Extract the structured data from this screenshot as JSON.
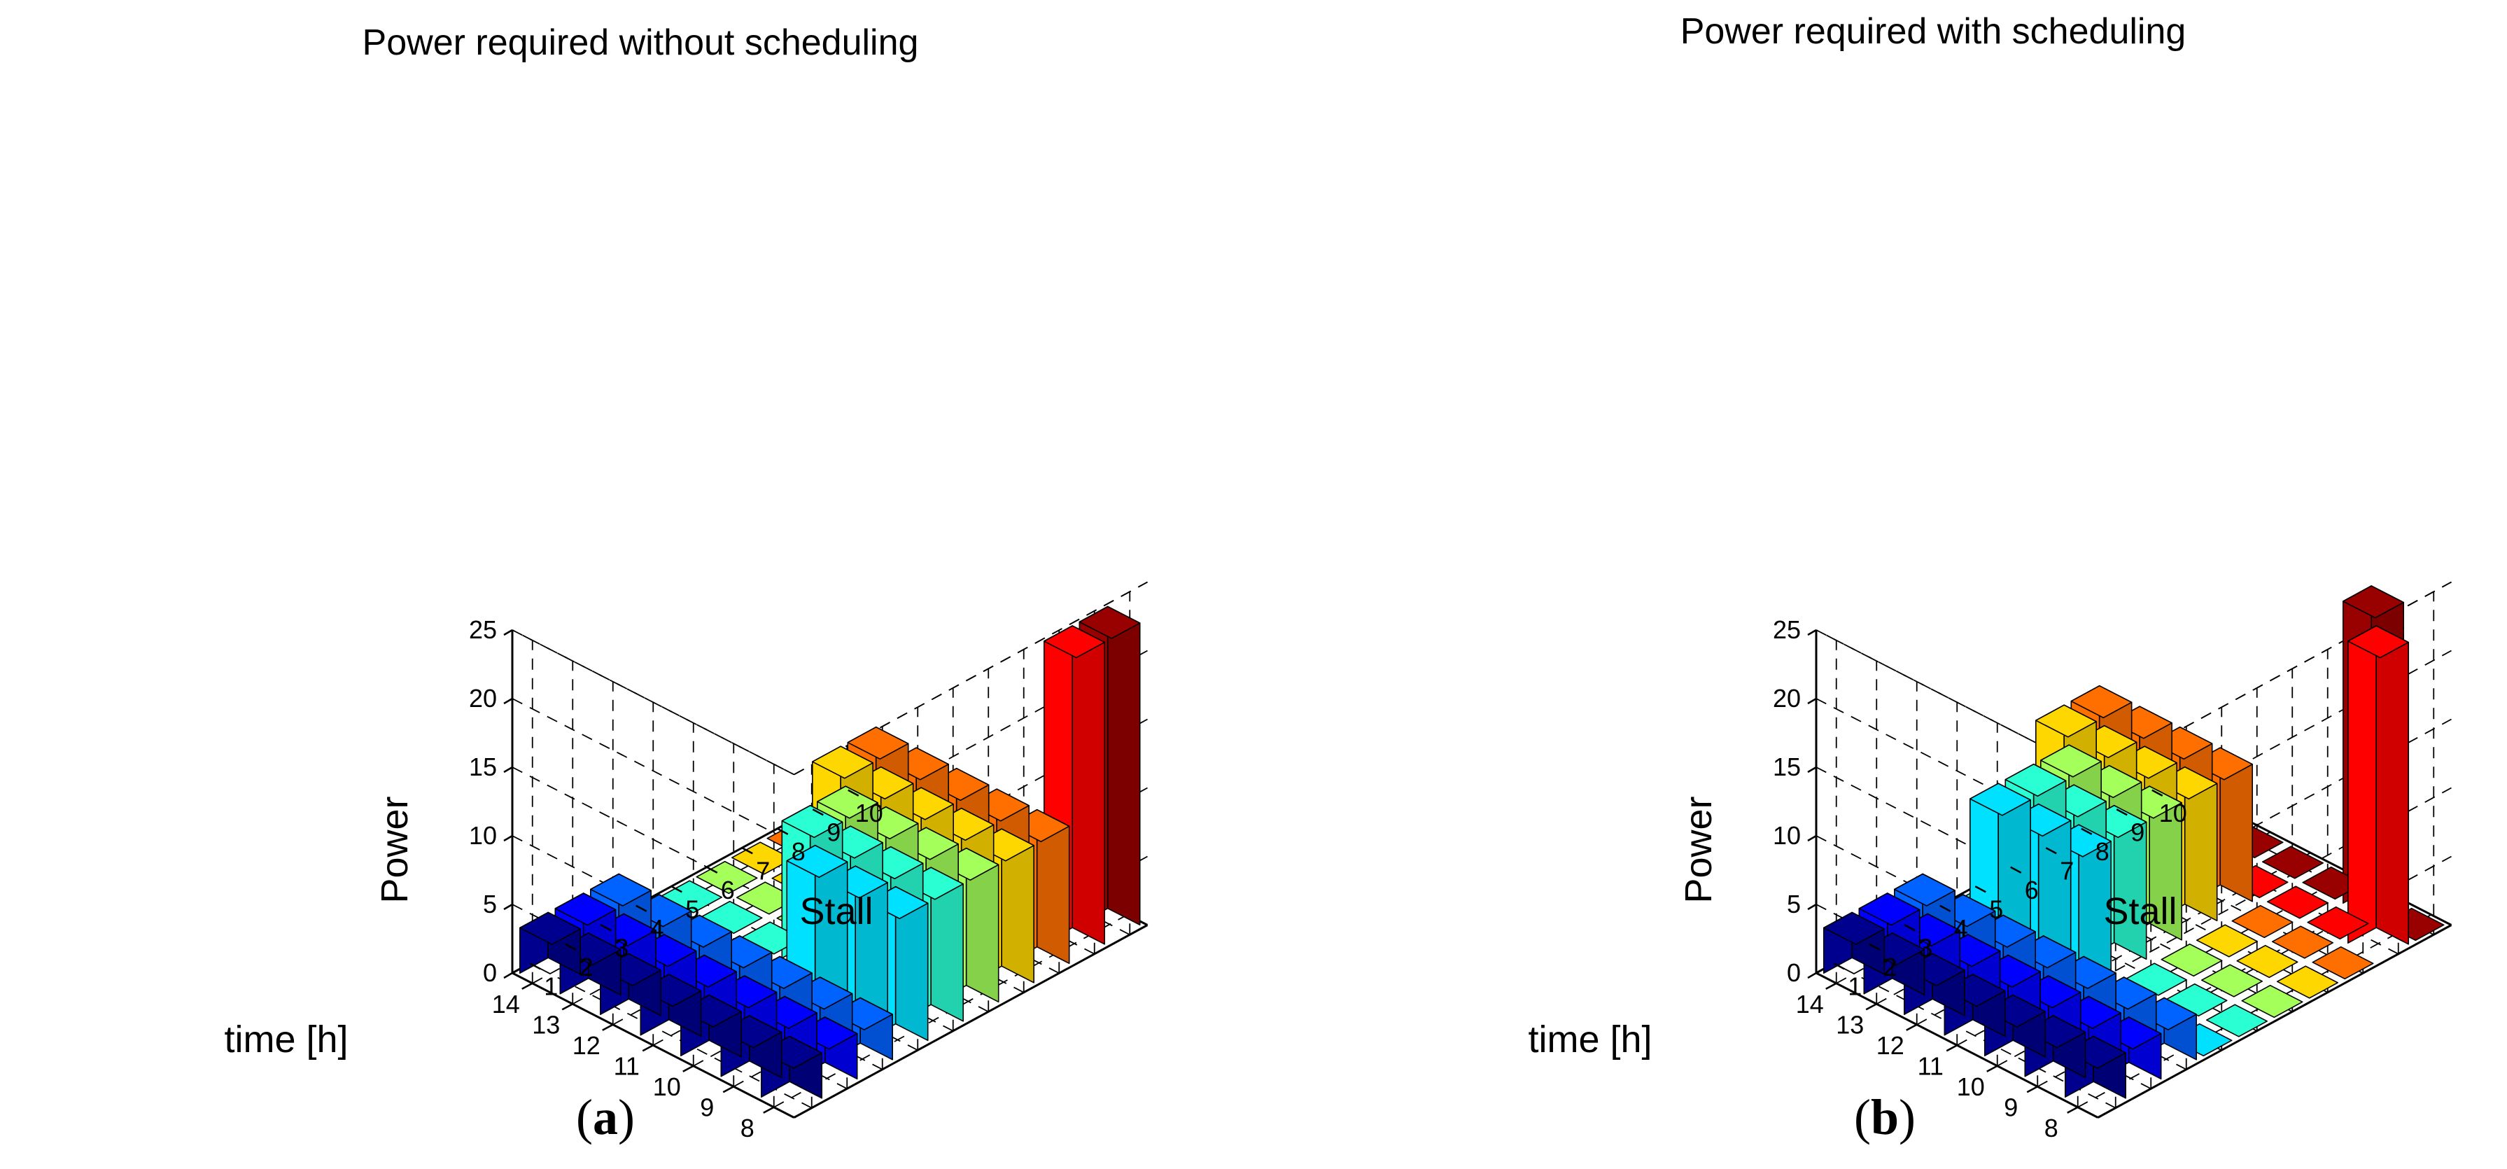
{
  "chart_data": [
    {
      "type": "bar3d",
      "title": "Power required without scheduling",
      "xlabel": "Stall",
      "ylabel": "time [h]",
      "zlabel": "Power",
      "caption_label": "a",
      "stalls": [
        1,
        2,
        3,
        4,
        5,
        6,
        7,
        8,
        9,
        10
      ],
      "hours": [
        8,
        9,
        10,
        11,
        12,
        13,
        14
      ],
      "zlim": [
        0,
        25
      ],
      "zticks": [
        0,
        5,
        10,
        15,
        20,
        25
      ],
      "grid": true,
      "values": [
        [
          3.3,
          3.3,
          3.3,
          3.3,
          3.3,
          3.3,
          3.3
        ],
        [
          3.3,
          3.3,
          3.3,
          3.3,
          3.3,
          3.3,
          3.3
        ],
        [
          3.3,
          3.3,
          3.3,
          3.3,
          3.3,
          3.3,
          3.3
        ],
        [
          10,
          10,
          10,
          0,
          0,
          0,
          0
        ],
        [
          10,
          10,
          10,
          10,
          0,
          0,
          0
        ],
        [
          10,
          10,
          10,
          10,
          0,
          0,
          0
        ],
        [
          10,
          10,
          10,
          10,
          10,
          0,
          0
        ],
        [
          10,
          10,
          10,
          10,
          10,
          0,
          0
        ],
        [
          22,
          0,
          0,
          0,
          0,
          0,
          0
        ],
        [
          22,
          0,
          0,
          0,
          0,
          0,
          0
        ]
      ]
    },
    {
      "type": "bar3d",
      "title": "Power required with scheduling",
      "xlabel": "Stall",
      "ylabel": "time [h]",
      "zlabel": "Power",
      "caption_label": "b",
      "stalls": [
        1,
        2,
        3,
        4,
        5,
        6,
        7,
        8,
        9,
        10
      ],
      "hours": [
        8,
        9,
        10,
        11,
        12,
        13,
        14
      ],
      "zlim": [
        0,
        25
      ],
      "zticks": [
        0,
        5,
        10,
        15,
        20,
        25
      ],
      "grid": true,
      "values": [
        [
          3.3,
          3.3,
          3.3,
          3.3,
          3.3,
          3.3,
          3.3
        ],
        [
          3.3,
          3.3,
          3.3,
          3.3,
          3.3,
          3.3,
          3.3
        ],
        [
          3.3,
          3.3,
          3.3,
          3.3,
          3.3,
          3.3,
          3.3
        ],
        [
          0,
          0,
          0,
          10,
          10,
          10,
          0
        ],
        [
          0,
          0,
          0,
          10,
          10,
          10,
          0
        ],
        [
          0,
          0,
          0,
          10,
          10,
          10,
          0
        ],
        [
          0,
          0,
          0,
          10,
          10,
          10,
          10
        ],
        [
          0,
          0,
          0,
          10,
          10,
          10,
          10
        ],
        [
          22,
          0,
          0,
          0,
          0,
          0,
          0
        ],
        [
          0,
          22,
          0,
          0,
          0,
          0,
          0
        ]
      ]
    }
  ]
}
